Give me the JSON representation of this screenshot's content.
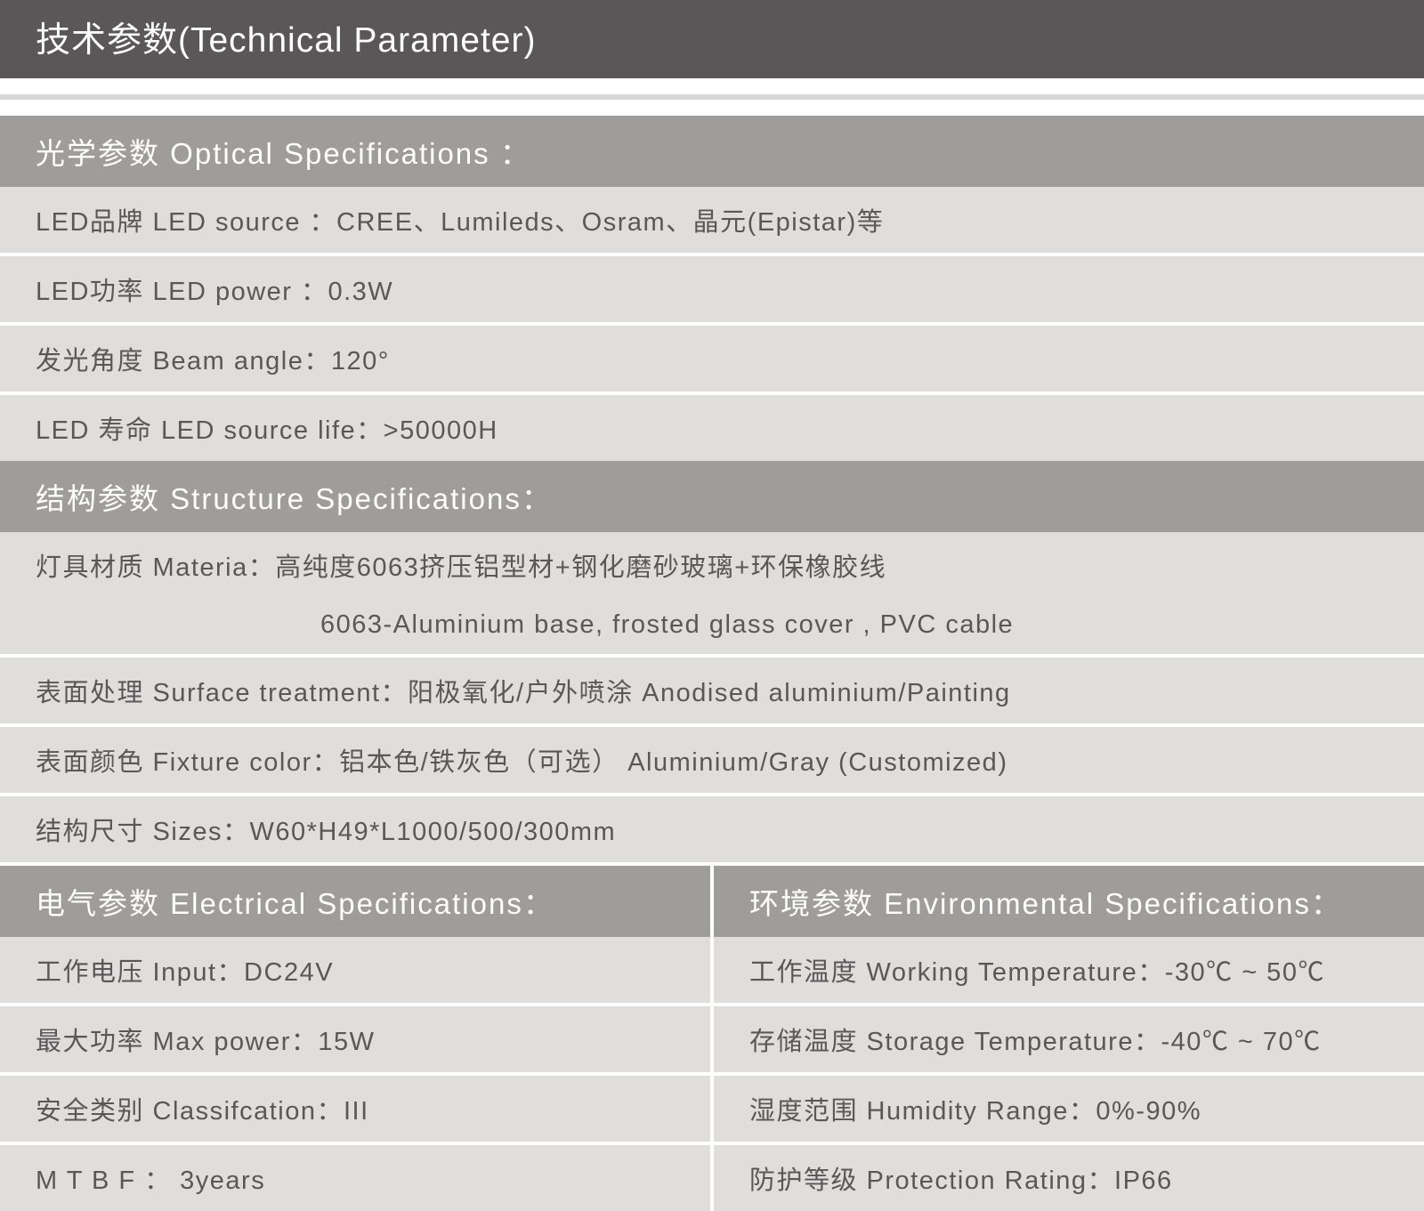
{
  "colors": {
    "title_bg": "#595757",
    "title_text": "#ffffff",
    "header_bg": "#9e9d9c",
    "header_text": "#ffffff",
    "row_bg": "#dfdedd",
    "row_text": "#595757",
    "divider": "#ffffff",
    "light_gap": "#d8d8d8"
  },
  "typography": {
    "title_fontsize": 39,
    "header_fontsize": 33,
    "row_fontsize": 29,
    "font_family": "Microsoft YaHei"
  },
  "title": "技术参数(Technical Parameter)",
  "optical": {
    "header": "光学参数 Optical Specifications  ：",
    "rows": [
      "LED品牌 LED source ：CREE、Lumileds、Osram、晶元(Epistar)等",
      "LED功率 LED power ：0.3W",
      "发光角度 Beam angle：120°",
      "LED 寿命 LED source life：>50000H"
    ]
  },
  "structure": {
    "header": "结构参数 Structure Specifications：",
    "rows": [
      "灯具材质 Materia：高纯度6063挤压铝型材+钢化磨砂玻璃+环保橡胶线",
      "6063-Aluminium base, frosted glass cover , PVC cable",
      "表面处理 Surface treatment：阳极氧化/户外喷涂 Anodised aluminium/Painting",
      "表面颜色 Fixture color：铝本色/铁灰色（可选） Aluminium/Gray (Customized)",
      "结构尺寸 Sizes：W60*H49*L1000/500/300mm"
    ]
  },
  "electrical": {
    "header": "电气参数 Electrical Specifications：",
    "rows": [
      "工作电压 Input：DC24V",
      "最大功率 Max power：15W",
      "安全类别 Classifcation：III",
      "M T B F ： 3years"
    ]
  },
  "environmental": {
    "header": "环境参数 Environmental Specifications：",
    "rows": [
      "工作温度 Working Temperature：-30℃ ~ 50℃",
      "存储温度 Storage Temperature：-40℃ ~ 70℃",
      "湿度范围 Humidity Range：0%-90%",
      "防护等级 Protection Rating：IP66"
    ]
  }
}
